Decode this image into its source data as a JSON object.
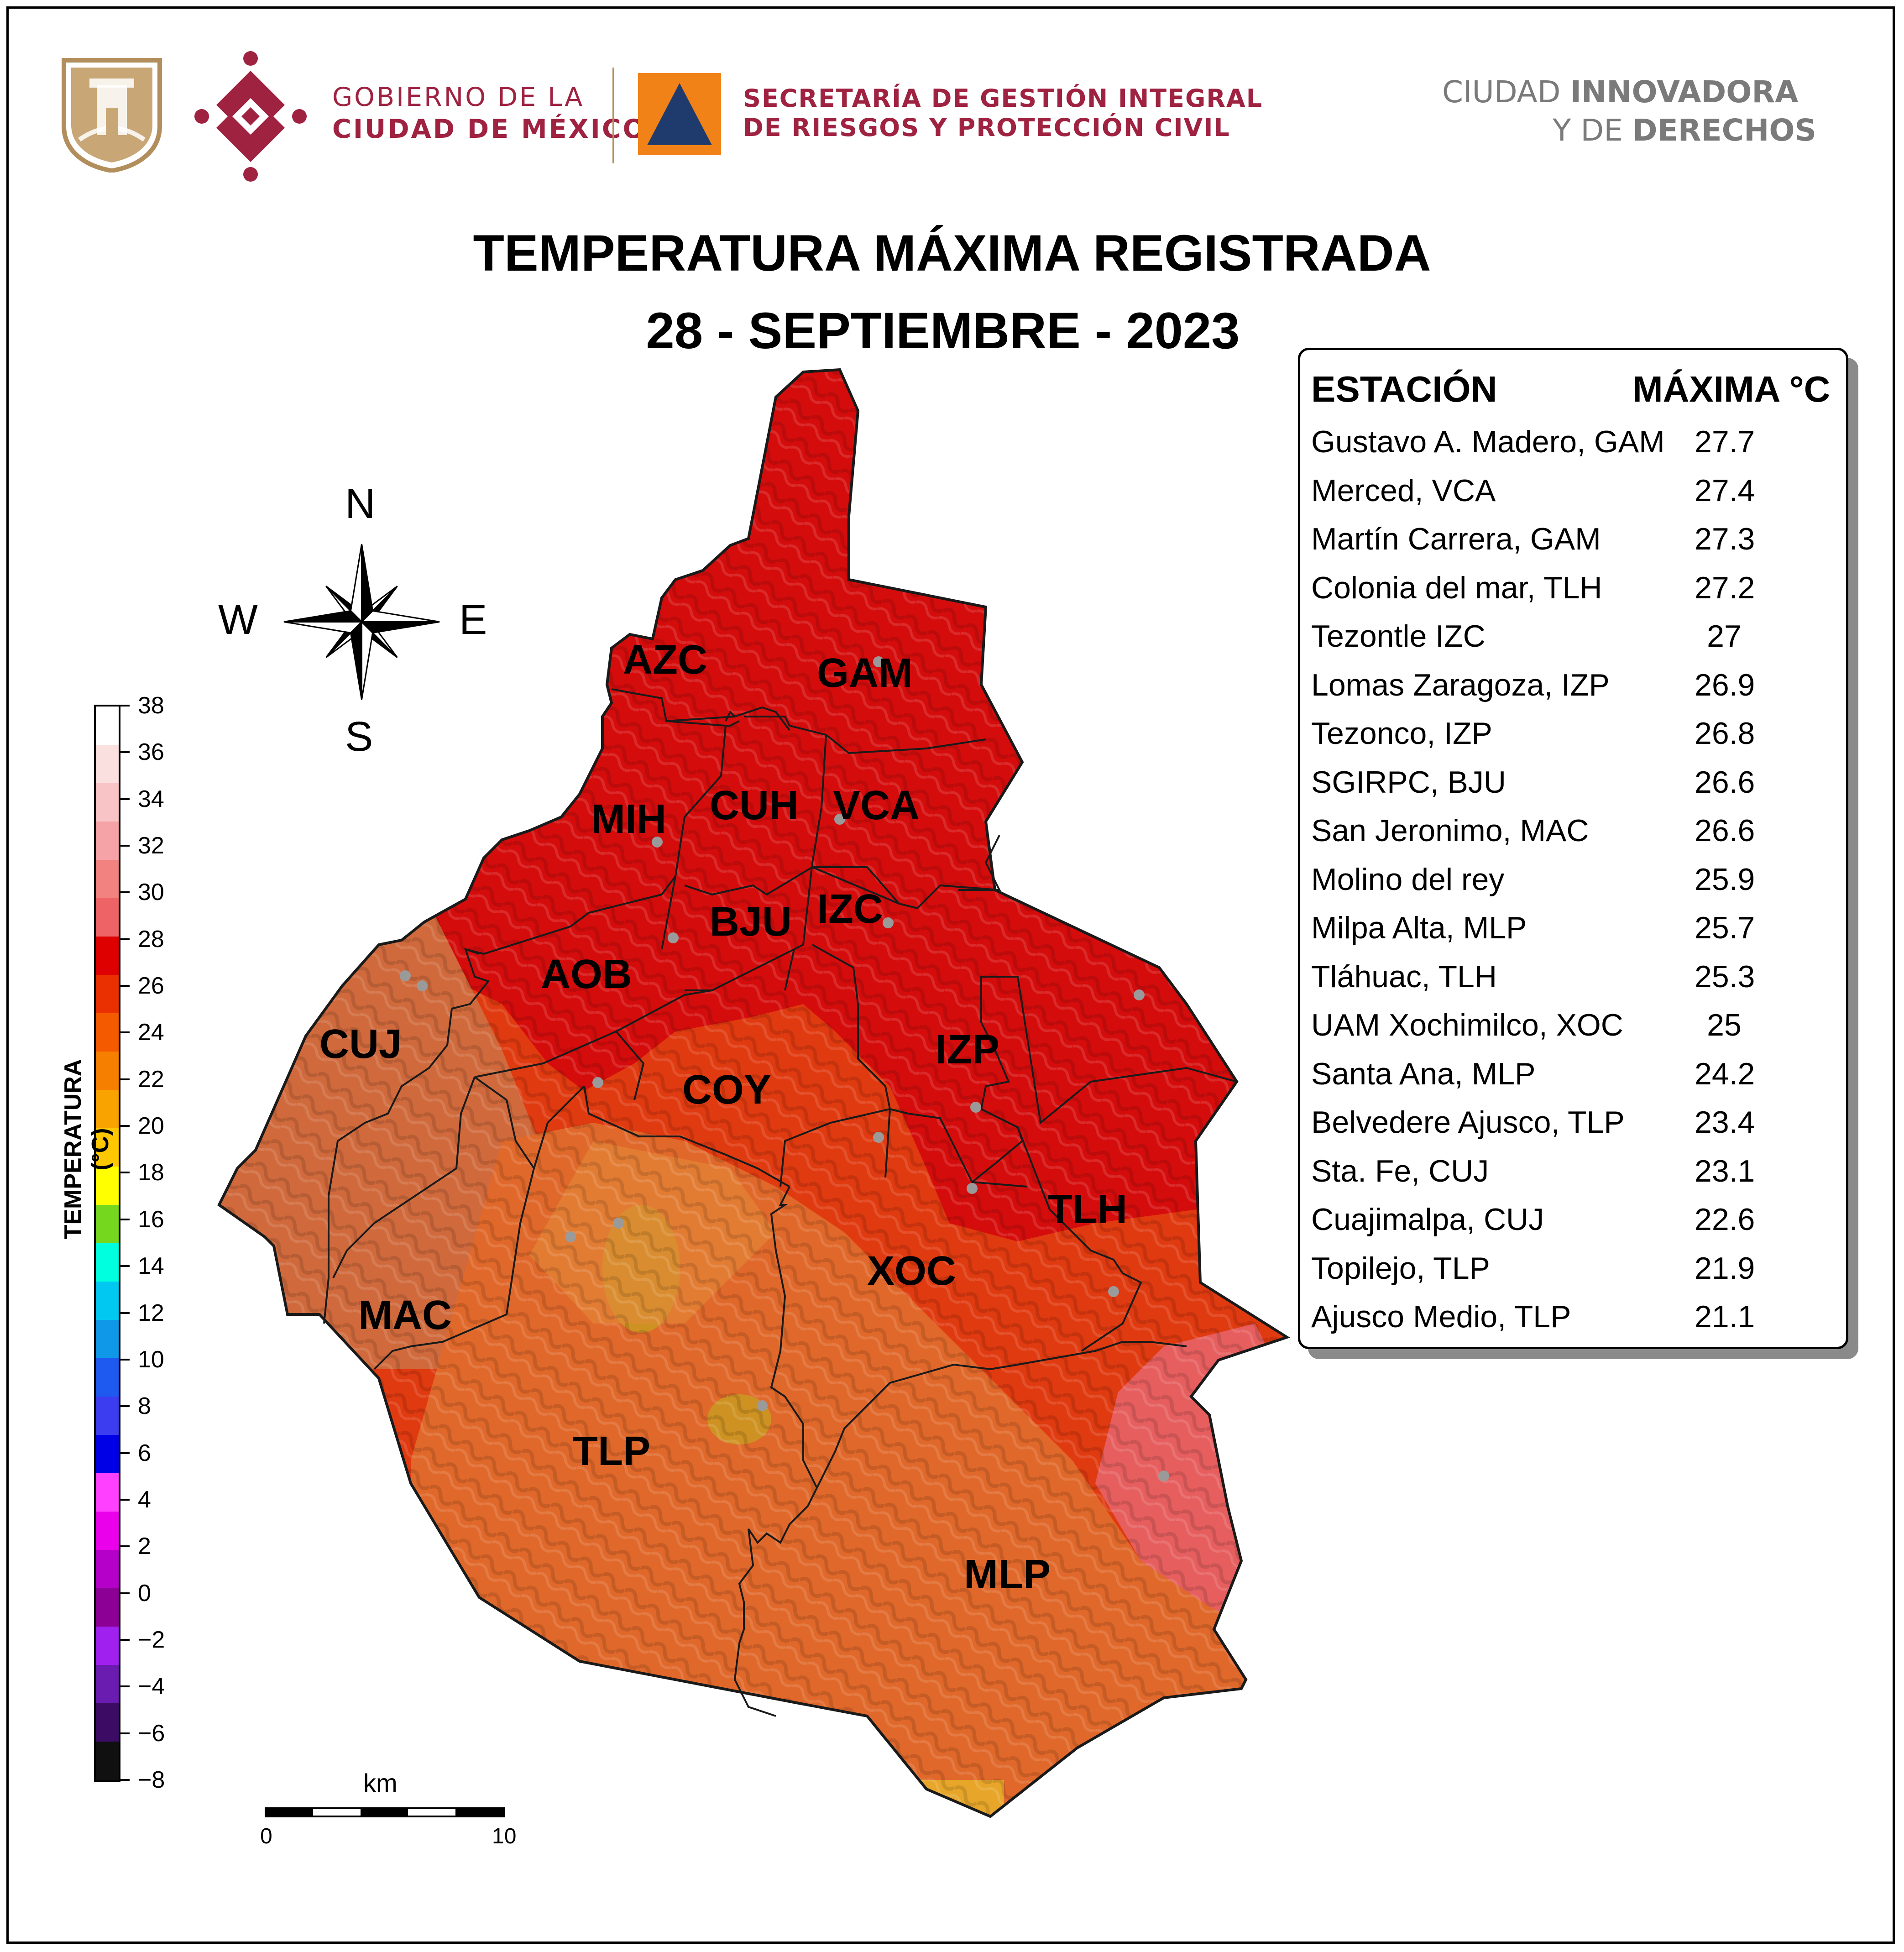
{
  "header": {
    "gov_line1": "GOBIERNO DE LA",
    "gov_line2": "CIUDAD DE MÉXICO",
    "sec_line1": "SECRETARÍA DE GESTIÓN INTEGRAL",
    "sec_line2": "DE RIESGOS Y PROTECCIÓN CIVIL",
    "slogan_line1_a": "CIUDAD ",
    "slogan_line1_b": "INNOVADORA",
    "slogan_line2_a": "Y DE ",
    "slogan_line2_b": "DERECHOS",
    "colors": {
      "gov": "#9f2241",
      "sec_orange": "#f08217",
      "sec_navy": "#1f3b6e",
      "gold": "#b38e5d",
      "slogan": "#7a7a7a"
    }
  },
  "title": {
    "line1": "TEMPERATURA MÁXIMA REGISTRADA",
    "line2": "28 - SEPTIEMBRE - 2023"
  },
  "compass": {
    "n": "N",
    "s": "S",
    "e": "E",
    "w": "W"
  },
  "colorbar": {
    "label": "TEMPERATURA (°C)",
    "ticks": [
      "38",
      "36",
      "34",
      "32",
      "30",
      "28",
      "26",
      "24",
      "22",
      "20",
      "18",
      "16",
      "14",
      "12",
      "10",
      "8",
      "6",
      "4",
      "2",
      "0",
      "−2",
      "−4",
      "−6",
      "−8"
    ],
    "colors_top_to_bottom": [
      "#ffffff",
      "#fbe0e0",
      "#f9c4c6",
      "#f5a3a6",
      "#f28280",
      "#ee6466",
      "#de0000",
      "#ea2f00",
      "#f45b00",
      "#f77f00",
      "#f9a300",
      "#ffc700",
      "#ffff00",
      "#76d71f",
      "#00ffdf",
      "#00c8f0",
      "#1098e8",
      "#1e5af0",
      "#3c3cf0",
      "#0000e6",
      "#ff40ff",
      "#ea00ea",
      "#b400c8",
      "#8c0096",
      "#a020f0",
      "#6a1bb0",
      "#3c0c64",
      "#101010"
    ]
  },
  "scale_bar": {
    "unit": "km",
    "start": "0",
    "end": "10"
  },
  "map": {
    "districts": [
      "AZC",
      "GAM",
      "MIH",
      "CUH",
      "VCA",
      "BJU",
      "IZC",
      "AOB",
      "CUJ",
      "COY",
      "IZP",
      "TLH",
      "XOC",
      "MAC",
      "TLP",
      "MLP"
    ]
  },
  "table": {
    "col_station": "ESTACIÓN",
    "col_max": "MÁXIMA °C",
    "rows": [
      {
        "station": "Gustavo A. Madero, GAM",
        "max": "27.7"
      },
      {
        "station": "Merced, VCA",
        "max": "27.4"
      },
      {
        "station": "Martín Carrera, GAM",
        "max": "27.3"
      },
      {
        "station": "Colonia del mar, TLH",
        "max": "27.2"
      },
      {
        "station": "Tezontle IZC",
        "max": "27"
      },
      {
        "station": "Lomas Zaragoza, IZP",
        "max": "26.9"
      },
      {
        "station": "Tezonco, IZP",
        "max": "26.8"
      },
      {
        "station": "SGIRPC, BJU",
        "max": "26.6"
      },
      {
        "station": "San Jeronimo, MAC",
        "max": "26.6"
      },
      {
        "station": "Molino del rey",
        "max": "25.9"
      },
      {
        "station": "Milpa Alta, MLP",
        "max": "25.7"
      },
      {
        "station": "Tláhuac, TLH",
        "max": "25.3"
      },
      {
        "station": "UAM Xochimilco, XOC",
        "max": "25"
      },
      {
        "station": "Santa Ana, MLP",
        "max": "24.2"
      },
      {
        "station": "Belvedere Ajusco, TLP",
        "max": "23.4"
      },
      {
        "station": "Sta. Fe, CUJ",
        "max": "23.1"
      },
      {
        "station": "Cuajimalpa, CUJ",
        "max": "22.6"
      },
      {
        "station": "Topilejo, TLP",
        "max": "21.9"
      },
      {
        "station": "Ajusco Medio, TLP",
        "max": "21.1"
      }
    ]
  }
}
